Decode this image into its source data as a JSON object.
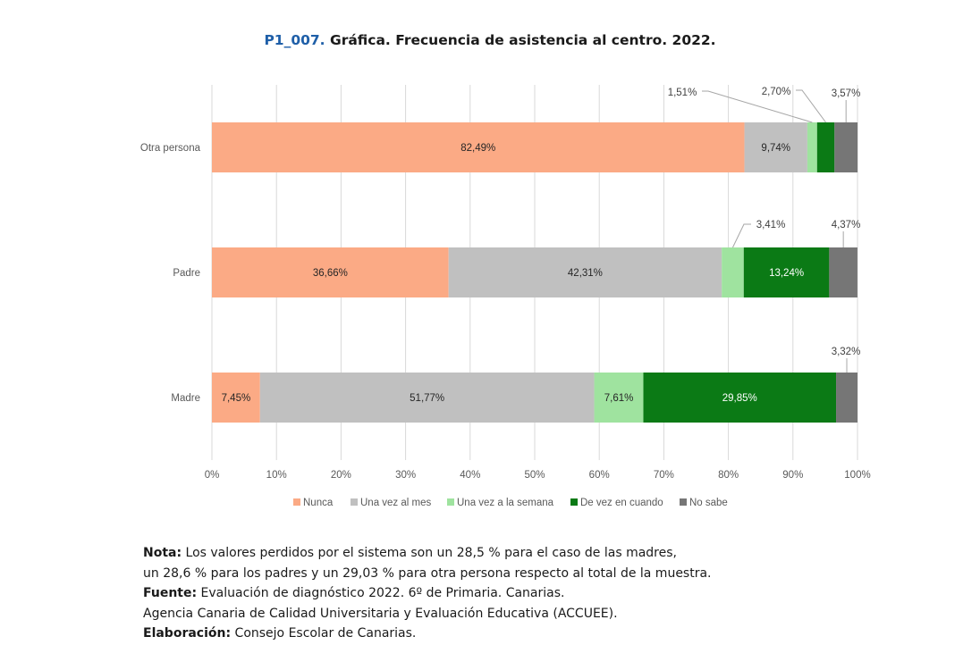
{
  "title": {
    "code": "P1_007.",
    "text": " Gráfica. Frecuencia de asistencia al centro. 2022."
  },
  "chart_data": {
    "type": "bar",
    "orientation": "horizontal",
    "stacked": true,
    "categories": [
      "Otra persona",
      "Padre",
      "Madre"
    ],
    "series": [
      {
        "name": "Nunca",
        "color": "#fbaa85",
        "values": [
          82.49,
          36.66,
          7.45
        ],
        "labels": [
          "82,49%",
          "36,66%",
          "7,45%"
        ]
      },
      {
        "name": "Una vez al mes",
        "color": "#c0c0c0",
        "values": [
          9.74,
          42.31,
          51.77
        ],
        "labels": [
          "9,74%",
          "42,31%",
          "51,77%"
        ]
      },
      {
        "name": "Una vez a la semana",
        "color": "#9fe39f",
        "values": [
          1.51,
          3.41,
          7.61
        ],
        "labels": [
          "1,51%",
          "3,41%",
          "7,61%"
        ]
      },
      {
        "name": "De vez en cuando",
        "color": "#0b7a15",
        "values": [
          2.7,
          13.24,
          29.85
        ],
        "labels": [
          "2,70%",
          "13,24%",
          "29,85%"
        ]
      },
      {
        "name": "No sabe",
        "color": "#767676",
        "values": [
          3.57,
          4.37,
          3.32
        ],
        "labels": [
          "3,57%",
          "4,37%",
          "3,32%"
        ]
      }
    ],
    "xticks": [
      "0%",
      "10%",
      "20%",
      "30%",
      "40%",
      "50%",
      "60%",
      "70%",
      "80%",
      "90%",
      "100%"
    ],
    "xlim": [
      0,
      100
    ],
    "grid": true,
    "legend": "bottom"
  },
  "notes": {
    "nota_label": "Nota:",
    "nota_line1": " Los valores perdidos por el sistema son un 28,5 % para el caso de las madres,",
    "nota_line2": "un 28,6 % para los padres y un 29,03 % para otra persona respecto al total de la muestra.",
    "fuente_label": "Fuente:",
    "fuente_text": " Evaluación de diagnóstico 2022. 6º de Primaria. Canarias.",
    "agencia": "Agencia Canaria de Calidad Universitaria y Evaluación Educativa (ACCUEE).",
    "elaboracion_label": "Elaboración:",
    "elaboracion_text": " Consejo Escolar de Canarias."
  }
}
